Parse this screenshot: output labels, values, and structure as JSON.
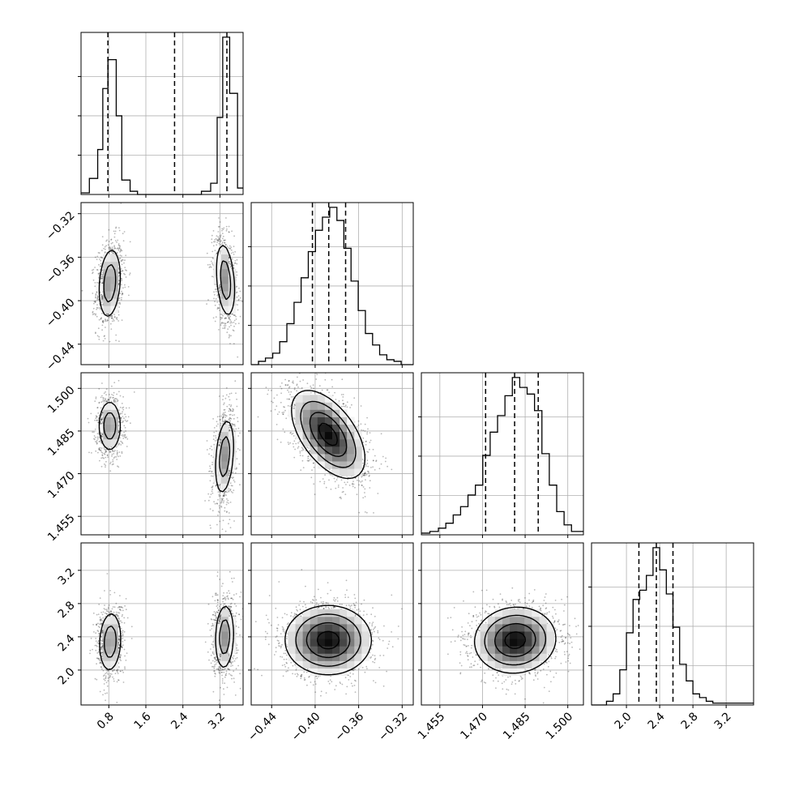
{
  "chart_data": {
    "type": "corner",
    "parameters": [
      {
        "id": "p0",
        "range": [
          0.2,
          3.7
        ],
        "ticks": [
          "0.8",
          "1.6",
          "2.4",
          "3.2"
        ],
        "tick_values": [
          0.8,
          1.6,
          2.4,
          3.2
        ]
      },
      {
        "id": "p1",
        "range": [
          -0.4588,
          -0.3098
        ],
        "ticks": [
          "-0.44",
          "-0.40",
          "-0.36",
          "-0.32"
        ],
        "tick_values": [
          -0.44,
          -0.4,
          -0.36,
          -0.32
        ]
      },
      {
        "id": "p2",
        "range": [
          1.4485,
          1.5055
        ],
        "ticks": [
          "1.455",
          "1.470",
          "1.485",
          "1.500"
        ],
        "tick_values": [
          1.455,
          1.47,
          1.485,
          1.5
        ]
      },
      {
        "id": "p3",
        "range": [
          1.58,
          3.53
        ],
        "ticks": [
          "2.0",
          "2.4",
          "2.8",
          "3.2"
        ],
        "tick_values": [
          2.0,
          2.4,
          2.8,
          3.2
        ]
      }
    ],
    "grid": true,
    "histograms": [
      {
        "param": 0,
        "quantiles": [
          0.78,
          2.22,
          3.35
        ],
        "bins": [
          {
            "x0": 0.2,
            "x1": 0.38,
            "count": 0.01
          },
          {
            "x0": 0.38,
            "x1": 0.56,
            "count": 0.1
          },
          {
            "x0": 0.56,
            "x1": 0.67,
            "count": 0.28
          },
          {
            "x0": 0.67,
            "x1": 0.78,
            "count": 0.66
          },
          {
            "x0": 0.78,
            "x1": 0.96,
            "count": 0.84
          },
          {
            "x0": 0.96,
            "x1": 1.08,
            "count": 0.49
          },
          {
            "x0": 1.08,
            "x1": 1.26,
            "count": 0.09
          },
          {
            "x0": 1.26,
            "x1": 1.42,
            "count": 0.02
          },
          {
            "x0": 1.42,
            "x1": 2.8,
            "count": 0.0
          },
          {
            "x0": 2.8,
            "x1": 3.0,
            "count": 0.02
          },
          {
            "x0": 3.0,
            "x1": 3.14,
            "count": 0.07
          },
          {
            "x0": 3.14,
            "x1": 3.26,
            "count": 0.48
          },
          {
            "x0": 3.26,
            "x1": 3.41,
            "count": 0.98
          },
          {
            "x0": 3.41,
            "x1": 3.58,
            "count": 0.63
          },
          {
            "x0": 3.58,
            "x1": 3.7,
            "count": 0.04
          }
        ]
      },
      {
        "param": 1,
        "quantiles": [
          -0.4025,
          -0.3875,
          -0.372
        ],
        "bins": [
          {
            "x0": -0.4588,
            "x1": -0.4521,
            "count": 0.0
          },
          {
            "x0": -0.4521,
            "x1": -0.4457,
            "count": 0.02
          },
          {
            "x0": -0.4457,
            "x1": -0.439,
            "count": 0.04
          },
          {
            "x0": -0.439,
            "x1": -0.4326,
            "count": 0.07
          },
          {
            "x0": -0.4326,
            "x1": -0.426,
            "count": 0.14
          },
          {
            "x0": -0.426,
            "x1": -0.4194,
            "count": 0.25
          },
          {
            "x0": -0.4194,
            "x1": -0.4129,
            "count": 0.38
          },
          {
            "x0": -0.4129,
            "x1": -0.4063,
            "count": 0.53
          },
          {
            "x0": -0.4063,
            "x1": -0.3997,
            "count": 0.69
          },
          {
            "x0": -0.3997,
            "x1": -0.3933,
            "count": 0.82
          },
          {
            "x0": -0.3933,
            "x1": -0.3866,
            "count": 0.9
          },
          {
            "x0": -0.3866,
            "x1": -0.38,
            "count": 0.96
          },
          {
            "x0": -0.38,
            "x1": -0.3736,
            "count": 0.88
          },
          {
            "x0": -0.3736,
            "x1": -0.367,
            "count": 0.71
          },
          {
            "x0": -0.367,
            "x1": -0.3604,
            "count": 0.51
          },
          {
            "x0": -0.3604,
            "x1": -0.3538,
            "count": 0.33
          },
          {
            "x0": -0.3538,
            "x1": -0.3472,
            "count": 0.19
          },
          {
            "x0": -0.3472,
            "x1": -0.3407,
            "count": 0.12
          },
          {
            "x0": -0.3407,
            "x1": -0.3341,
            "count": 0.06
          },
          {
            "x0": -0.3341,
            "x1": -0.3275,
            "count": 0.03
          },
          {
            "x0": -0.3275,
            "x1": -0.3209,
            "count": 0.02
          },
          {
            "x0": -0.3209,
            "x1": -0.3098,
            "count": 0.0
          }
        ]
      },
      {
        "param": 2,
        "quantiles": [
          1.4711,
          1.4813,
          1.4896
        ],
        "bins": [
          {
            "x0": 1.4485,
            "x1": 1.4515,
            "count": 0.01
          },
          {
            "x0": 1.4515,
            "x1": 1.4545,
            "count": 0.02
          },
          {
            "x0": 1.4545,
            "x1": 1.4571,
            "count": 0.04
          },
          {
            "x0": 1.4571,
            "x1": 1.4597,
            "count": 0.07
          },
          {
            "x0": 1.4597,
            "x1": 1.4623,
            "count": 0.12
          },
          {
            "x0": 1.4623,
            "x1": 1.4649,
            "count": 0.17
          },
          {
            "x0": 1.4649,
            "x1": 1.4675,
            "count": 0.24
          },
          {
            "x0": 1.4675,
            "x1": 1.4701,
            "count": 0.3
          },
          {
            "x0": 1.4701,
            "x1": 1.4727,
            "count": 0.48
          },
          {
            "x0": 1.4727,
            "x1": 1.4753,
            "count": 0.62
          },
          {
            "x0": 1.4753,
            "x1": 1.4779,
            "count": 0.72
          },
          {
            "x0": 1.4779,
            "x1": 1.4805,
            "count": 0.84
          },
          {
            "x0": 1.4805,
            "x1": 1.4831,
            "count": 0.95
          },
          {
            "x0": 1.4831,
            "x1": 1.4857,
            "count": 0.89
          },
          {
            "x0": 1.4857,
            "x1": 1.4883,
            "count": 0.85
          },
          {
            "x0": 1.4883,
            "x1": 1.4909,
            "count": 0.75
          },
          {
            "x0": 1.4909,
            "x1": 1.4935,
            "count": 0.49
          },
          {
            "x0": 1.4935,
            "x1": 1.4961,
            "count": 0.3
          },
          {
            "x0": 1.4961,
            "x1": 1.4987,
            "count": 0.14
          },
          {
            "x0": 1.4987,
            "x1": 1.5013,
            "count": 0.06
          },
          {
            "x0": 1.5013,
            "x1": 1.5055,
            "count": 0.02
          }
        ]
      },
      {
        "param": 3,
        "quantiles": [
          2.15,
          2.36,
          2.56
        ],
        "bins": [
          {
            "x0": 1.58,
            "x1": 1.76,
            "count": 0.0
          },
          {
            "x0": 1.76,
            "x1": 1.84,
            "count": 0.02
          },
          {
            "x0": 1.84,
            "x1": 1.92,
            "count": 0.06
          },
          {
            "x0": 1.92,
            "x1": 2.0,
            "count": 0.19
          },
          {
            "x0": 2.0,
            "x1": 2.08,
            "count": 0.39
          },
          {
            "x0": 2.08,
            "x1": 2.16,
            "count": 0.57
          },
          {
            "x0": 2.16,
            "x1": 2.24,
            "count": 0.62
          },
          {
            "x0": 2.24,
            "x1": 2.32,
            "count": 0.7
          },
          {
            "x0": 2.32,
            "x1": 2.4,
            "count": 0.85
          },
          {
            "x0": 2.4,
            "x1": 2.48,
            "count": 0.73
          },
          {
            "x0": 2.48,
            "x1": 2.56,
            "count": 0.6
          },
          {
            "x0": 2.56,
            "x1": 2.64,
            "count": 0.42
          },
          {
            "x0": 2.64,
            "x1": 2.72,
            "count": 0.22
          },
          {
            "x0": 2.72,
            "x1": 2.8,
            "count": 0.13
          },
          {
            "x0": 2.8,
            "x1": 2.88,
            "count": 0.06
          },
          {
            "x0": 2.88,
            "x1": 2.96,
            "count": 0.04
          },
          {
            "x0": 2.96,
            "x1": 3.04,
            "count": 0.02
          },
          {
            "x0": 3.04,
            "x1": 3.53,
            "count": 0.01
          }
        ]
      }
    ],
    "scatter_panels": [
      {
        "x": 0,
        "y": 1,
        "modes": [
          {
            "cx": 0.82,
            "cy": -0.384,
            "sx": 0.14,
            "sy": 0.019,
            "rho": 0.2
          },
          {
            "cx": 3.32,
            "cy": -0.381,
            "sx": 0.12,
            "sy": 0.02,
            "rho": -0.3
          }
        ]
      },
      {
        "x": 0,
        "y": 2,
        "modes": [
          {
            "cx": 0.82,
            "cy": 1.4868,
            "sx": 0.14,
            "sy": 0.0052,
            "rho": 0.0
          },
          {
            "cx": 3.3,
            "cy": 1.476,
            "sx": 0.12,
            "sy": 0.0078,
            "rho": 0.3
          }
        ]
      },
      {
        "x": 1,
        "y": 2,
        "modes": [
          {
            "cx": -0.388,
            "cy": 1.4838,
            "sx": 0.017,
            "sy": 0.0078,
            "rho": -0.55
          }
        ]
      },
      {
        "x": 0,
        "y": 3,
        "modes": [
          {
            "cx": 0.83,
            "cy": 2.34,
            "sx": 0.14,
            "sy": 0.21,
            "rho": 0.1
          },
          {
            "cx": 3.3,
            "cy": 2.4,
            "sx": 0.12,
            "sy": 0.23,
            "rho": 0.1
          }
        ]
      },
      {
        "x": 1,
        "y": 3,
        "modes": [
          {
            "cx": -0.388,
            "cy": 2.36,
            "sx": 0.02,
            "sy": 0.21,
            "rho": 0.0
          }
        ]
      },
      {
        "x": 2,
        "y": 3,
        "modes": [
          {
            "cx": 1.4815,
            "cy": 2.36,
            "sx": 0.0072,
            "sy": 0.2,
            "rho": 0.05
          }
        ]
      }
    ]
  }
}
